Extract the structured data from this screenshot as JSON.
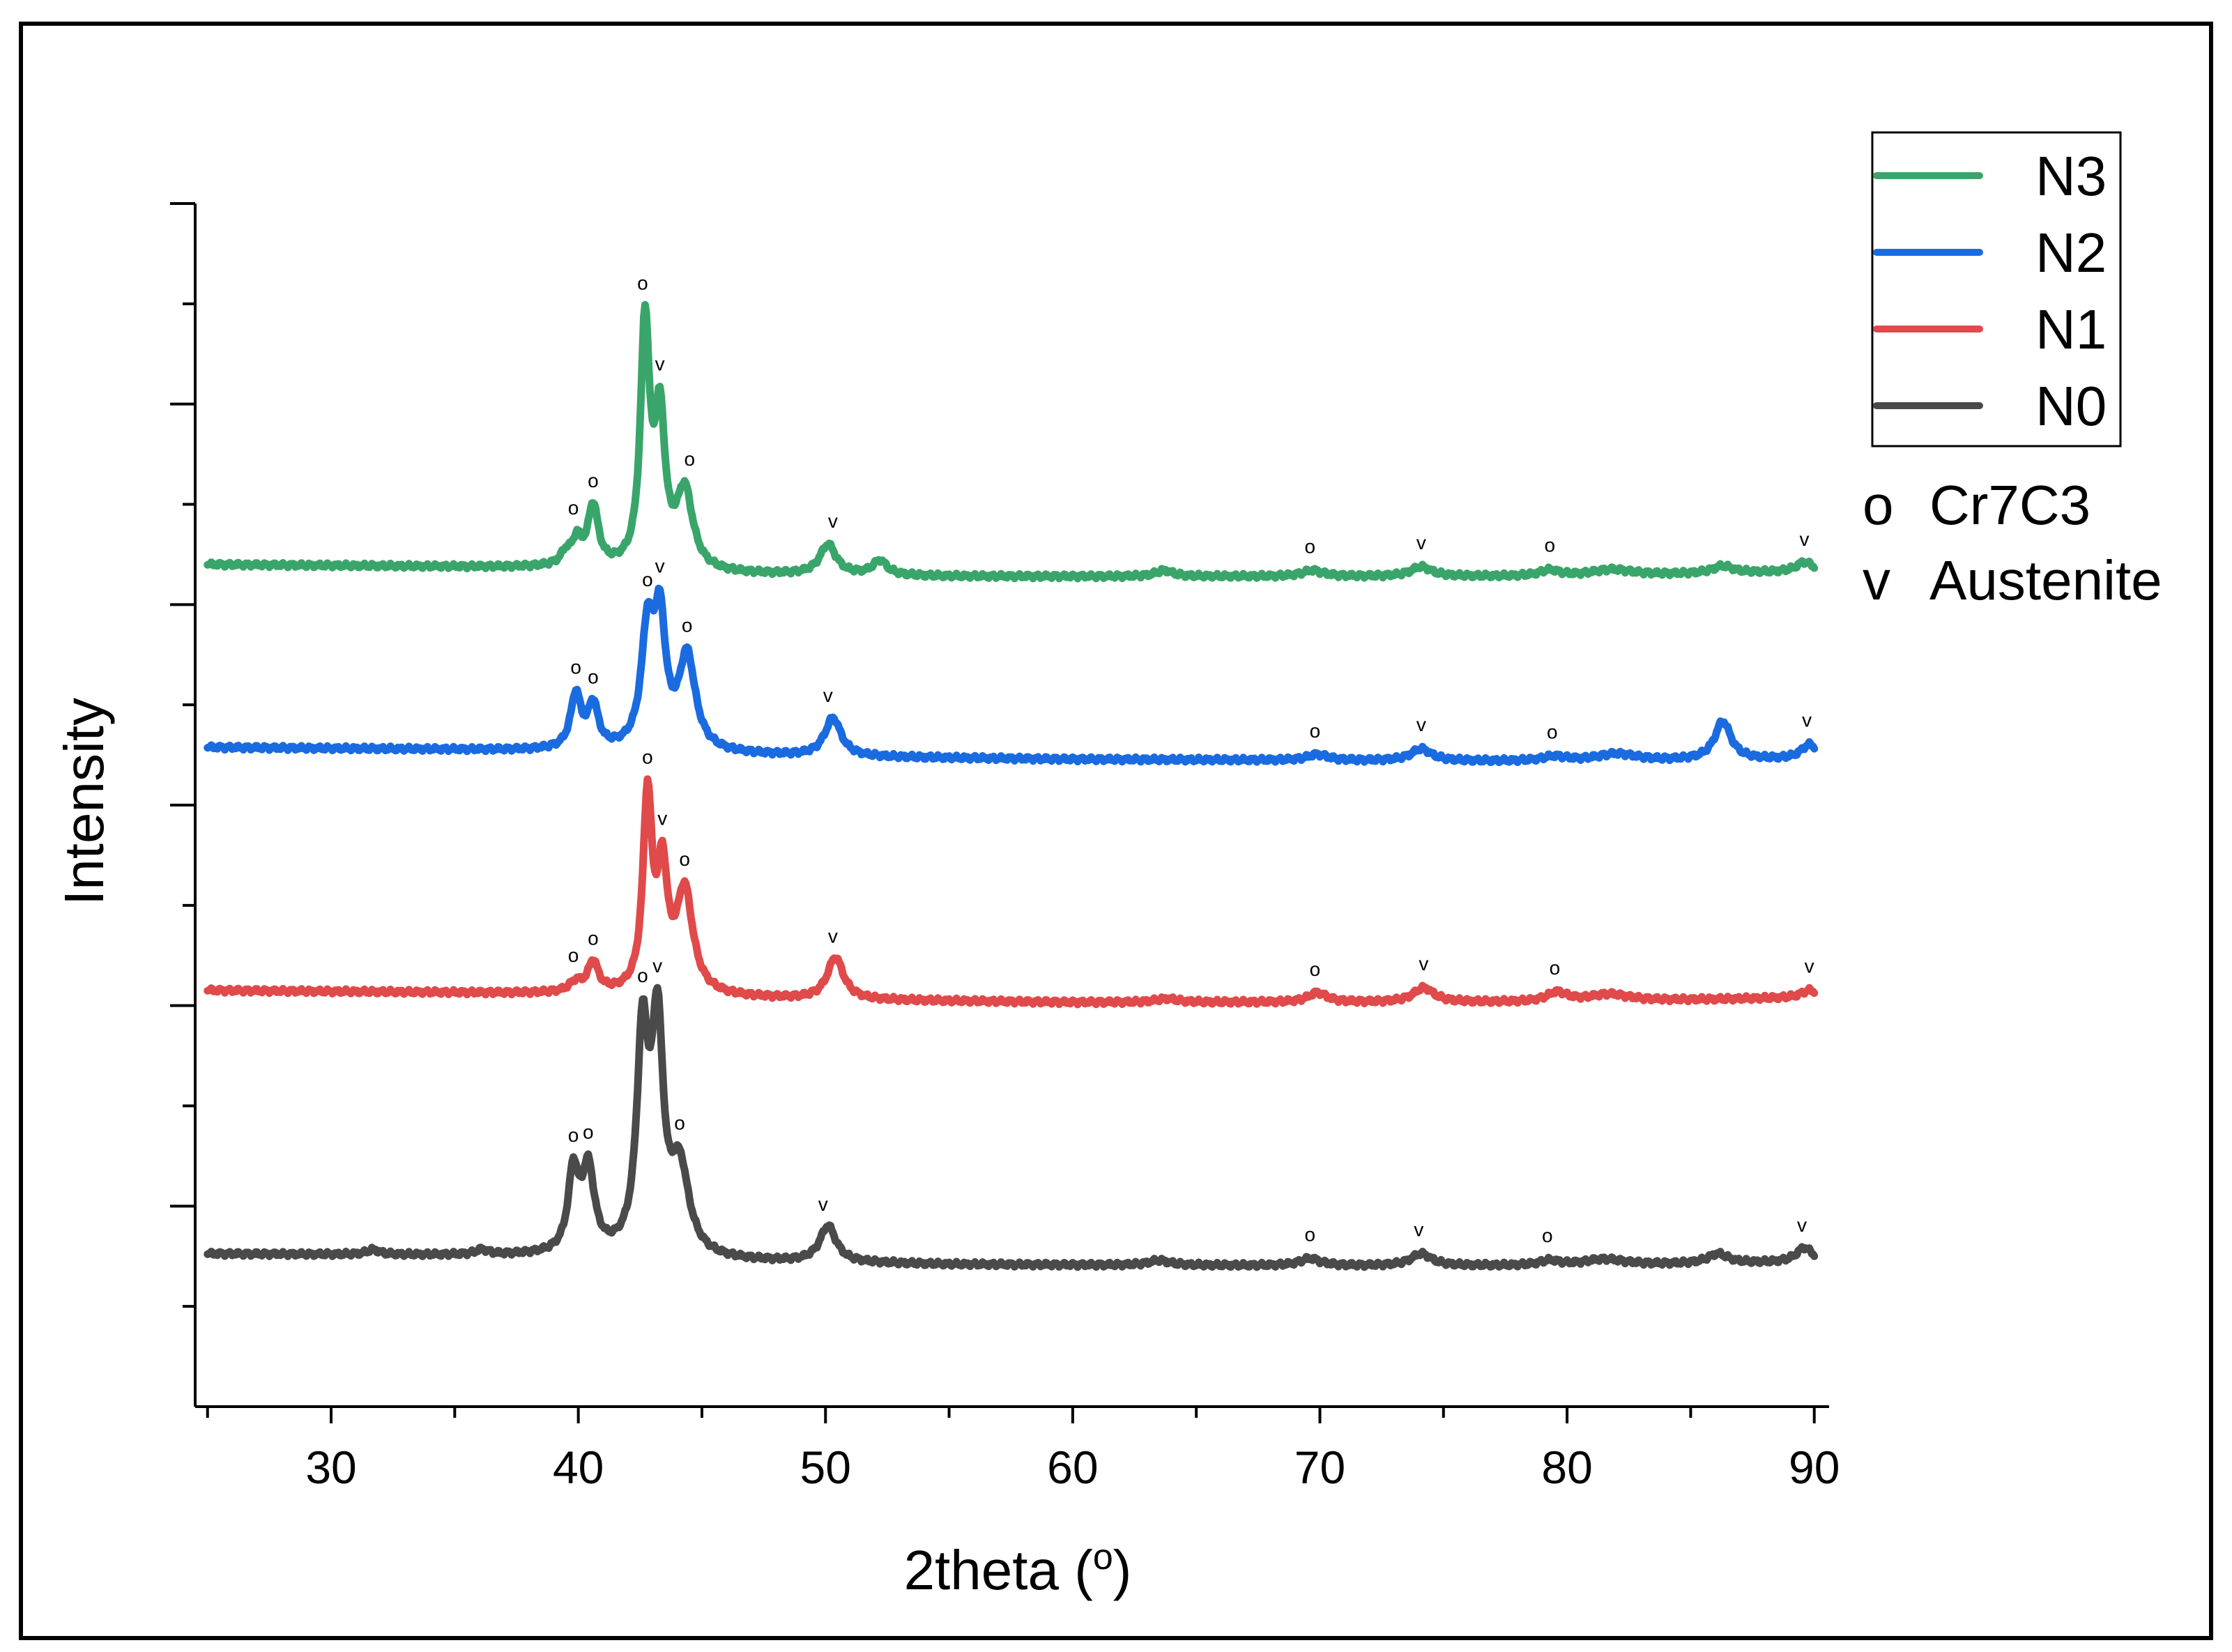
{
  "chart_data": {
    "type": "line",
    "title": "",
    "xlabel": "2theta",
    "xlabel_unit": "o",
    "ylabel": "Intensity",
    "xlim": [
      24.5,
      90.6
    ],
    "xticks": [
      30,
      40,
      50,
      60,
      70,
      80,
      90
    ],
    "ylim": [
      0,
      1000
    ],
    "yticks_count": 12,
    "legend_position": "top-right",
    "phase_legend": [
      {
        "symbol": "o",
        "label": "Cr7C3"
      },
      {
        "symbol": "v",
        "label": "Austenite"
      }
    ],
    "series": [
      {
        "name": "N3",
        "color": "#3aa56a",
        "baseline": 700,
        "background": [
          [
            25,
            700
          ],
          [
            40,
            697
          ],
          [
            45,
            692
          ],
          [
            55,
            690
          ],
          [
            70,
            690
          ],
          [
            80,
            690
          ],
          [
            90,
            694
          ]
        ],
        "peaks": [
          [
            39.5,
            10,
            0.25
          ],
          [
            39.95,
            20,
            0.22
          ],
          [
            40.6,
            50,
            0.25
          ],
          [
            42.7,
            200,
            0.22
          ],
          [
            43.3,
            120,
            0.25
          ],
          [
            44.3,
            65,
            0.4
          ],
          [
            50.1,
            25,
            0.4
          ],
          [
            52.2,
            12,
            0.35
          ],
          [
            63.7,
            5,
            0.4
          ],
          [
            69.7,
            5,
            0.5
          ],
          [
            74.1,
            8,
            0.5
          ],
          [
            79.3,
            5,
            0.5
          ],
          [
            81.8,
            5,
            1.0
          ],
          [
            86.3,
            6,
            0.5
          ],
          [
            89.6,
            8,
            0.4
          ]
        ],
        "markers": [
          {
            "x": 39.8,
            "sym": "o"
          },
          {
            "x": 40.6,
            "sym": "o"
          },
          {
            "x": 42.6,
            "sym": "o"
          },
          {
            "x": 43.3,
            "sym": "v"
          },
          {
            "x": 44.5,
            "sym": "o"
          },
          {
            "x": 50.3,
            "sym": "v"
          },
          {
            "x": 69.6,
            "sym": "o"
          },
          {
            "x": 74.1,
            "sym": "v"
          },
          {
            "x": 79.3,
            "sym": "o"
          },
          {
            "x": 89.6,
            "sym": "v"
          }
        ]
      },
      {
        "name": "N2",
        "color": "#1a6be0",
        "baseline": 548,
        "background": [
          [
            25,
            548
          ],
          [
            40,
            545
          ],
          [
            50,
            540
          ],
          [
            60,
            538
          ],
          [
            80,
            536
          ],
          [
            90,
            538
          ]
        ],
        "peaks": [
          [
            39.9,
            45,
            0.25
          ],
          [
            40.6,
            36,
            0.25
          ],
          [
            42.8,
            95,
            0.3
          ],
          [
            43.3,
            100,
            0.28
          ],
          [
            44.4,
            78,
            0.4
          ],
          [
            50.3,
            32,
            0.4
          ],
          [
            69.9,
            5,
            0.5
          ],
          [
            74.1,
            10,
            0.5
          ],
          [
            79.5,
            4,
            0.6
          ],
          [
            82.0,
            6,
            1.0
          ],
          [
            86.3,
            32,
            0.4
          ],
          [
            89.8,
            12,
            0.4
          ]
        ],
        "markers": [
          {
            "x": 39.9,
            "sym": "o"
          },
          {
            "x": 40.6,
            "sym": "o"
          },
          {
            "x": 42.8,
            "sym": "o"
          },
          {
            "x": 43.3,
            "sym": "v"
          },
          {
            "x": 44.4,
            "sym": "o"
          },
          {
            "x": 50.1,
            "sym": "v"
          },
          {
            "x": 69.8,
            "sym": "o"
          },
          {
            "x": 74.1,
            "sym": "v"
          },
          {
            "x": 79.4,
            "sym": "o"
          },
          {
            "x": 89.7,
            "sym": "v"
          }
        ]
      },
      {
        "name": "N1",
        "color": "#e04a4a",
        "baseline": 346,
        "background": [
          [
            25,
            346
          ],
          [
            40,
            343
          ],
          [
            50,
            338
          ],
          [
            60,
            336
          ],
          [
            80,
            336
          ],
          [
            90,
            340
          ]
        ],
        "peaks": [
          [
            39.9,
            8,
            0.3
          ],
          [
            40.6,
            25,
            0.25
          ],
          [
            42.8,
            160,
            0.22
          ],
          [
            43.4,
            95,
            0.25
          ],
          [
            44.3,
            85,
            0.4
          ],
          [
            50.4,
            35,
            0.4
          ],
          [
            63.8,
            3,
            0.5
          ],
          [
            69.9,
            8,
            0.45
          ],
          [
            74.2,
            12,
            0.5
          ],
          [
            79.6,
            8,
            0.5
          ],
          [
            81.7,
            6,
            1.0
          ],
          [
            89.8,
            6,
            0.4
          ]
        ],
        "markers": [
          {
            "x": 39.8,
            "sym": "o"
          },
          {
            "x": 40.6,
            "sym": "o"
          },
          {
            "x": 42.8,
            "sym": "o"
          },
          {
            "x": 43.4,
            "sym": "v"
          },
          {
            "x": 44.3,
            "sym": "o"
          },
          {
            "x": 50.3,
            "sym": "v"
          },
          {
            "x": 69.8,
            "sym": "o"
          },
          {
            "x": 74.2,
            "sym": "v"
          },
          {
            "x": 79.5,
            "sym": "o"
          },
          {
            "x": 89.8,
            "sym": "v"
          }
        ]
      },
      {
        "name": "N0",
        "color": "#4a4a4a",
        "baseline": 127,
        "background": [
          [
            25,
            127
          ],
          [
            40,
            125
          ],
          [
            45,
            121
          ],
          [
            55,
            118
          ],
          [
            70,
            117
          ],
          [
            80,
            117
          ],
          [
            90,
            120
          ]
        ],
        "peaks": [
          [
            31.7,
            4,
            0.3
          ],
          [
            36.1,
            4,
            0.3
          ],
          [
            39.8,
            65,
            0.25
          ],
          [
            40.4,
            68,
            0.3
          ],
          [
            42.6,
            175,
            0.28
          ],
          [
            43.2,
            180,
            0.28
          ],
          [
            44.1,
            70,
            0.45
          ],
          [
            50.1,
            30,
            0.4
          ],
          [
            63.5,
            4,
            0.5
          ],
          [
            69.6,
            6,
            0.5
          ],
          [
            74.1,
            10,
            0.5
          ],
          [
            79.3,
            4,
            0.5
          ],
          [
            81.5,
            5,
            1.0
          ],
          [
            86.1,
            8,
            0.5
          ],
          [
            89.6,
            12,
            0.4
          ]
        ],
        "markers": [
          {
            "x": 39.8,
            "sym": "o"
          },
          {
            "x": 40.4,
            "sym": "o"
          },
          {
            "x": 42.6,
            "sym": "o"
          },
          {
            "x": 43.2,
            "sym": "v"
          },
          {
            "x": 44.1,
            "sym": "o"
          },
          {
            "x": 49.9,
            "sym": "v"
          },
          {
            "x": 69.6,
            "sym": "o"
          },
          {
            "x": 74.0,
            "sym": "v"
          },
          {
            "x": 79.2,
            "sym": "o"
          },
          {
            "x": 89.5,
            "sym": "v"
          }
        ]
      }
    ]
  }
}
